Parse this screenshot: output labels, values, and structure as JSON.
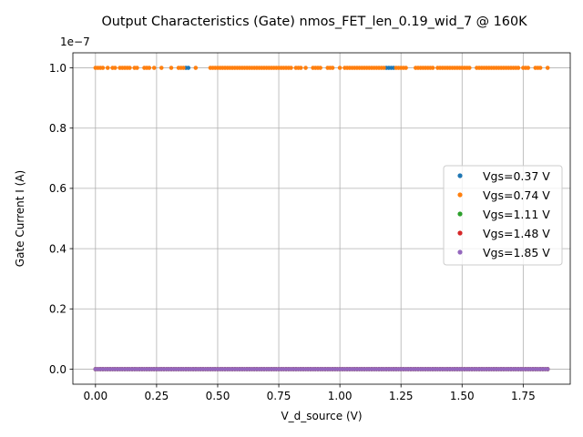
{
  "chart_data": {
    "type": "scatter",
    "title": "Output Characteristics (Gate) nmos_FET_len_0.19_wid_7 @ 160K",
    "xlabel": "V_d_source (V)",
    "ylabel": "Gate Current I (A)",
    "y_offset_label": "1e−7",
    "xlim": [
      -0.0925,
      1.9425
    ],
    "ylim": [
      -0.05,
      1.05
    ],
    "y_scale": 1e-07,
    "grid": true,
    "legend_position": "center-right",
    "x_ticks": [
      0.0,
      0.25,
      0.5,
      0.75,
      1.0,
      1.25,
      1.5,
      1.75
    ],
    "x_tick_labels": [
      "0.00",
      "0.25",
      "0.50",
      "0.75",
      "1.00",
      "1.25",
      "1.50",
      "1.75"
    ],
    "y_ticks": [
      0.0,
      0.2,
      0.4,
      0.6,
      0.8,
      1.0
    ],
    "y_tick_labels": [
      "0.0",
      "0.2",
      "0.4",
      "0.6",
      "0.8",
      "1.0"
    ],
    "series": [
      {
        "name": "Vgs=0.37 V",
        "color": "#1f77b4",
        "high_x": [
          0.37,
          0.38,
          1.19,
          1.2,
          1.21,
          1.22
        ],
        "low_range": [
          0.0,
          1.85
        ]
      },
      {
        "name": "Vgs=0.74 V",
        "color": "#ff7f0e",
        "high_x": [
          0.0,
          0.01,
          0.02,
          0.03,
          0.05,
          0.07,
          0.08,
          0.1,
          0.11,
          0.12,
          0.13,
          0.14,
          0.16,
          0.17,
          0.2,
          0.21,
          0.22,
          0.24,
          0.27,
          0.31,
          0.34,
          0.35,
          0.36,
          0.41,
          0.47,
          0.48,
          0.49,
          0.5,
          0.51,
          0.52,
          0.53,
          0.54,
          0.55,
          0.56,
          0.57,
          0.58,
          0.59,
          0.6,
          0.61,
          0.62,
          0.63,
          0.64,
          0.65,
          0.66,
          0.67,
          0.68,
          0.69,
          0.7,
          0.71,
          0.72,
          0.73,
          0.74,
          0.75,
          0.76,
          0.77,
          0.78,
          0.79,
          0.8,
          0.82,
          0.83,
          0.84,
          0.86,
          0.89,
          0.9,
          0.91,
          0.92,
          0.95,
          0.96,
          0.97,
          1.0,
          1.02,
          1.03,
          1.04,
          1.05,
          1.06,
          1.07,
          1.08,
          1.09,
          1.1,
          1.11,
          1.12,
          1.13,
          1.14,
          1.15,
          1.16,
          1.17,
          1.18,
          1.23,
          1.24,
          1.25,
          1.26,
          1.27,
          1.31,
          1.32,
          1.33,
          1.34,
          1.35,
          1.36,
          1.37,
          1.38,
          1.4,
          1.41,
          1.42,
          1.43,
          1.44,
          1.45,
          1.46,
          1.47,
          1.48,
          1.49,
          1.5,
          1.51,
          1.52,
          1.53,
          1.56,
          1.57,
          1.58,
          1.59,
          1.6,
          1.61,
          1.62,
          1.63,
          1.64,
          1.65,
          1.66,
          1.67,
          1.68,
          1.69,
          1.7,
          1.71,
          1.72,
          1.73,
          1.75,
          1.76,
          1.77,
          1.8,
          1.81,
          1.82,
          1.85
        ],
        "low_range": [
          0.0,
          1.85
        ]
      },
      {
        "name": "Vgs=1.11 V",
        "color": "#2ca02c",
        "high_x": [],
        "low_range": [
          0.0,
          1.85
        ]
      },
      {
        "name": "Vgs=1.48 V",
        "color": "#d62728",
        "high_x": [],
        "low_range": [
          0.0,
          1.85
        ]
      },
      {
        "name": "Vgs=1.85 V",
        "color": "#9467bd",
        "high_x": [],
        "low_range": [
          0.0,
          1.85
        ]
      }
    ],
    "low_value": 0.0,
    "high_value": 1.0,
    "x_step": 0.01
  }
}
